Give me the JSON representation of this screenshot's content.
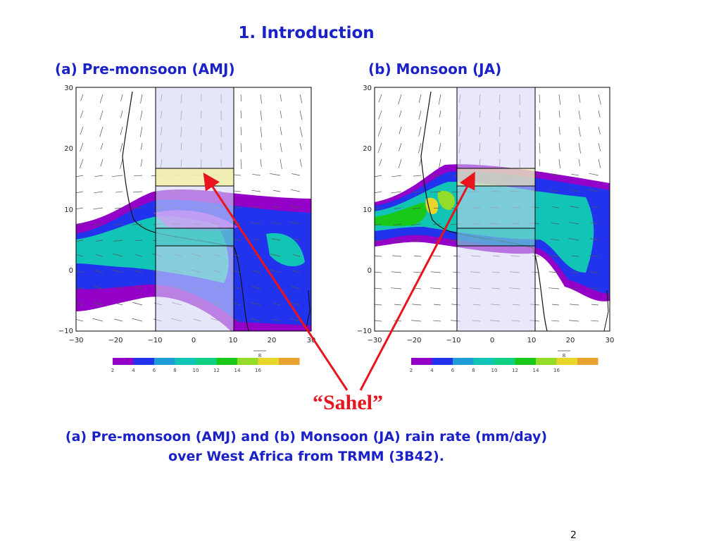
{
  "slide": {
    "title": "1. Introduction",
    "page_number": "2",
    "annotation": "“Sahel”",
    "caption_line1": "(a) Pre-monsoon (AMJ) and (b) Monsoon (JA) rain rate (mm/day)",
    "caption_line2": "over West Africa from TRMM (3B42)."
  },
  "panels": [
    {
      "title": "(a) Pre-monsoon (AMJ)",
      "x_ticks": [
        "−30",
        "−20",
        "−10",
        "0",
        "10",
        "20",
        "30"
      ],
      "y_ticks": [
        "−10",
        "0",
        "10",
        "20",
        "30"
      ],
      "vector_ref": "8"
    },
    {
      "title": "(b) Monsoon (JA)",
      "x_ticks": [
        "−30",
        "−20",
        "−10",
        "0",
        "10",
        "20",
        "30"
      ],
      "y_ticks": [
        "−10",
        "0",
        "10",
        "20",
        "30"
      ],
      "vector_ref": "8"
    }
  ],
  "colorbar": {
    "labels": [
      "2",
      "4",
      "6",
      "8",
      "10",
      "12",
      "14",
      "16"
    ],
    "colors": [
      "#9400c8",
      "#2233ee",
      "#1f9dd8",
      "#11c4b6",
      "#0fcf82",
      "#19c819",
      "#93dd2a",
      "#e8d62c",
      "#e8a22e"
    ]
  },
  "colors": {
    "heading_blue": "#1a21c8",
    "annotation_red": "#e8141e",
    "sahel_box": "#f3f0a8",
    "analysis_box": "#d6d6f6"
  }
}
